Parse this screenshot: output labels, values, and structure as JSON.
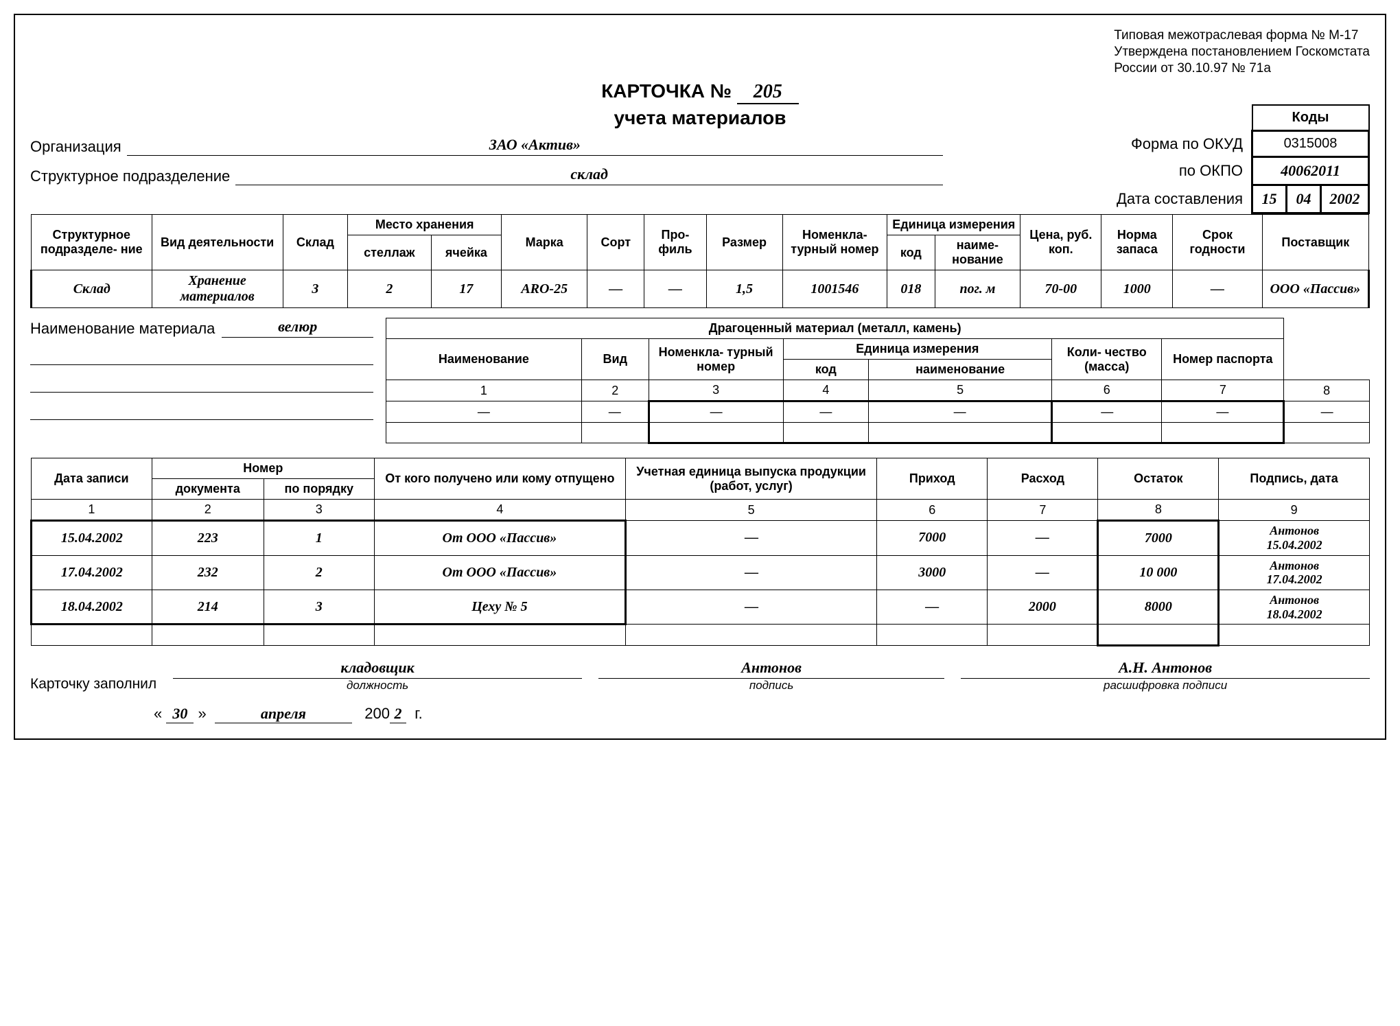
{
  "approval": {
    "line1": "Типовая межотраслевая форма № М-17",
    "line2": "Утверждена постановлением Госкомстата",
    "line3": "России от 30.10.97 № 71а"
  },
  "title": {
    "prefix": "КАРТОЧКА №",
    "number": "205",
    "sub": "учета материалов"
  },
  "codes": {
    "heading": "Коды",
    "okud_label": "Форма по ОКУД",
    "okud": "0315008",
    "okpo_label": "по ОКПО",
    "okpo": "40062011",
    "date_label": "Дата составления",
    "date_d": "15",
    "date_m": "04",
    "date_y": "2002"
  },
  "org": {
    "label": "Организация",
    "value": "ЗАО «Актив»"
  },
  "dept": {
    "label": "Структурное подразделение",
    "value": "склад"
  },
  "info": {
    "headers": {
      "struct": "Структурное подразделе-\nние",
      "activity": "Вид деятельности",
      "warehouse": "Склад",
      "storage": "Место хранения",
      "rack": "стеллаж",
      "cell": "ячейка",
      "brand": "Марка",
      "grade": "Сорт",
      "profile": "Про-\nфиль",
      "size": "Размер",
      "nomen": "Номенкла-\nтурный номер",
      "unit": "Единица измерения",
      "unit_code": "код",
      "unit_name": "наиме-\nнование",
      "price": "Цена, руб. коп.",
      "norm": "Норма запаса",
      "shelf": "Срок годности",
      "supplier": "Поставщик"
    },
    "row": {
      "struct": "Склад",
      "activity": "Хранение материалов",
      "warehouse": "3",
      "rack": "2",
      "cell": "17",
      "brand": "ARO-25",
      "grade": "—",
      "profile": "—",
      "size": "1,5",
      "nomen": "1001546",
      "unit_code": "018",
      "unit_name": "пог. м",
      "price": "70-00",
      "norm": "1000",
      "shelf": "—",
      "supplier": "ООО «Пассив»"
    }
  },
  "material": {
    "label": "Наименование материала",
    "value": "велюр"
  },
  "precious": {
    "title": "Драгоценный материал (металл, камень)",
    "h_name": "Наименование",
    "h_kind": "Вид",
    "h_nomen": "Номенкла-\nтурный номер",
    "h_unit": "Единица измерения",
    "h_code": "код",
    "h_uname": "наименование",
    "h_qty": "Коли-\nчество (масса)",
    "h_passport": "Номер паспорта",
    "cols": [
      "1",
      "2",
      "3",
      "4",
      "5",
      "6",
      "7",
      "8"
    ],
    "row": [
      "—",
      "—",
      "—",
      "—",
      "—",
      "—",
      "—",
      "—"
    ]
  },
  "moves": {
    "headers": {
      "date": "Дата записи",
      "number": "Номер",
      "doc": "документа",
      "order": "по порядку",
      "from": "От кого получено или кому отпущено",
      "unit": "Учетная единица выпуска продукции (работ, услуг)",
      "in": "Приход",
      "out": "Расход",
      "balance": "Остаток",
      "sign": "Подпись, дата"
    },
    "cols": [
      "1",
      "2",
      "3",
      "4",
      "5",
      "6",
      "7",
      "8",
      "9"
    ],
    "rows": [
      {
        "date": "15.04.2002",
        "doc": "223",
        "order": "1",
        "from": "От ООО «Пассив»",
        "unit": "—",
        "in": "7000",
        "out": "—",
        "balance": "7000",
        "sign_name": "Антонов",
        "sign_date": "15.04.2002"
      },
      {
        "date": "17.04.2002",
        "doc": "232",
        "order": "2",
        "from": "От ООО «Пассив»",
        "unit": "—",
        "in": "3000",
        "out": "—",
        "balance": "10 000",
        "sign_name": "Антонов",
        "sign_date": "17.04.2002"
      },
      {
        "date": "18.04.2002",
        "doc": "214",
        "order": "3",
        "from": "Цеху № 5",
        "unit": "—",
        "in": "—",
        "out": "2000",
        "balance": "8000",
        "sign_name": "Антонов",
        "sign_date": "18.04.2002"
      }
    ]
  },
  "footer": {
    "label": "Карточку заполнил",
    "position": "кладовщик",
    "position_cap": "должность",
    "sign": "Антонов",
    "sign_cap": "подпись",
    "decode": "А.Н. Антонов",
    "decode_cap": "расшифровка подписи",
    "day": "30",
    "month": "апреля",
    "year_tail": "2",
    "year_prefix": "200",
    "year_suffix": "г."
  }
}
